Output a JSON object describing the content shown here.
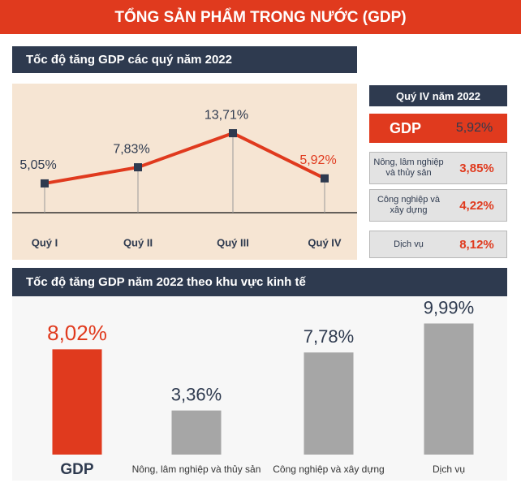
{
  "title": "TỔNG SẢN PHẨM TRONG NƯỚC (GDP)",
  "chart_data": [
    {
      "type": "line",
      "title": "Tốc độ tăng GDP các quý năm 2022",
      "categories": [
        "Quý I",
        "Quý II",
        "Quý III",
        "Quý IV"
      ],
      "values": [
        5.05,
        7.83,
        13.71,
        5.92
      ],
      "value_labels": [
        "5,05%",
        "7,83%",
        "13,71%",
        "5,92%"
      ],
      "color": "#e03a1e",
      "label_colors": [
        "#2e3a4f",
        "#2e3a4f",
        "#2e3a4f",
        "#e03a1e"
      ],
      "ylim": [
        0,
        21
      ]
    },
    {
      "type": "bar",
      "title": "Tốc độ tăng GDP năm 2022 theo khu vực kinh tế",
      "categories": [
        "GDP",
        "Nông, lâm nghiệp và thủy sản",
        "Công nghiệp và xây dựng",
        "Dịch vụ"
      ],
      "values": [
        8.02,
        3.36,
        7.78,
        9.99
      ],
      "value_labels": [
        "8,02%",
        "3,36%",
        "7,78%",
        "9,99%"
      ],
      "colors": [
        "#e03a1e",
        "#a6a6a6",
        "#a6a6a6",
        "#a6a6a6"
      ],
      "label_colors": [
        "#e03a1e",
        "#2e3a4f",
        "#2e3a4f",
        "#2e3a4f"
      ],
      "ylim": [
        0,
        12
      ]
    }
  ],
  "panel": {
    "title": "Quý IV năm 2022",
    "rows": [
      {
        "label": "GDP",
        "value": "5,92%"
      },
      {
        "label": "Nông, lâm nghiệp và thủy sản",
        "value": "3,85%"
      },
      {
        "label": "Công nghiệp và xây dựng",
        "value": "4,22%"
      },
      {
        "label": "Dịch vụ",
        "value": "8,12%"
      }
    ]
  }
}
